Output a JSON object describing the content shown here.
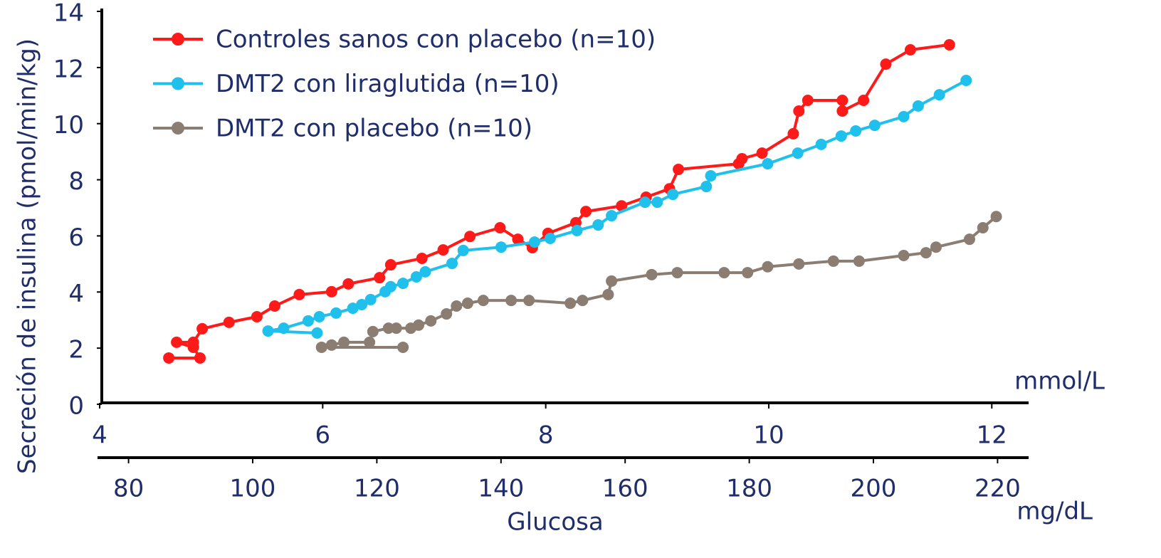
{
  "chart_data": {
    "type": "line",
    "ylabel": "Secreción de insulina (pmol/min/kg)",
    "xlabel": "Glucosa",
    "xunit": "mmol/L",
    "x2unit": "mg/dL",
    "ylim": [
      0,
      14
    ],
    "yticks": [
      0,
      2,
      4,
      6,
      8,
      10,
      12,
      14
    ],
    "xlim": [
      4,
      12.33
    ],
    "xticks": [
      4,
      6,
      8,
      10,
      12
    ],
    "x2lim": [
      75,
      225
    ],
    "x2ticks": [
      80,
      100,
      120,
      140,
      160,
      180,
      200,
      220
    ],
    "legend": "upper left",
    "series": [
      {
        "name": "Controles sanos con placebo (n=10)",
        "color": "#ff1a1a",
        "x": [
          4.62,
          4.9,
          4.84,
          4.69,
          4.84,
          4.92,
          5.16,
          5.41,
          5.57,
          5.79,
          6.08,
          6.23,
          6.51,
          6.61,
          6.89,
          7.08,
          7.32,
          7.59,
          7.75,
          7.88,
          8.02,
          8.27,
          8.36,
          8.68,
          8.9,
          9.11,
          9.19,
          9.73,
          9.76,
          9.94,
          10.22,
          10.27,
          10.35,
          10.66,
          10.66,
          10.85,
          11.05,
          11.27,
          11.62
        ],
        "values": [
          1.65,
          1.65,
          2.03,
          2.21,
          2.21,
          2.69,
          2.92,
          3.12,
          3.5,
          3.91,
          4.01,
          4.29,
          4.51,
          4.97,
          5.2,
          5.5,
          5.98,
          6.29,
          5.88,
          5.58,
          6.09,
          6.47,
          6.87,
          7.07,
          7.38,
          7.68,
          8.37,
          8.57,
          8.75,
          8.95,
          9.64,
          10.45,
          10.83,
          10.83,
          10.45,
          10.83,
          12.12,
          12.63,
          12.81
        ]
      },
      {
        "name": "DMT2 con liraglutida (n=10)",
        "color": "#1fc0ec",
        "x": [
          5.95,
          5.51,
          5.65,
          5.87,
          5.97,
          6.12,
          6.27,
          6.35,
          6.43,
          6.56,
          6.61,
          6.72,
          6.84,
          6.92,
          7.16,
          7.26,
          7.6,
          7.9,
          8.04,
          8.28,
          8.47,
          8.59,
          8.89,
          9.0,
          9.14,
          9.44,
          9.48,
          9.99,
          10.26,
          10.47,
          10.65,
          10.78,
          10.95,
          11.21,
          11.34,
          11.53,
          11.77
        ],
        "values": [
          2.54,
          2.61,
          2.71,
          2.97,
          3.12,
          3.25,
          3.42,
          3.55,
          3.73,
          4.01,
          4.19,
          4.31,
          4.54,
          4.72,
          5.02,
          5.48,
          5.6,
          5.78,
          5.91,
          6.19,
          6.39,
          6.72,
          7.2,
          7.2,
          7.48,
          7.76,
          8.14,
          8.57,
          8.95,
          9.26,
          9.56,
          9.74,
          9.94,
          10.25,
          10.63,
          11.03,
          11.54
        ]
      },
      {
        "name": "DMT2 con placebo (n=10)",
        "color": "#8b7d72",
        "x": [
          6.72,
          5.99,
          6.08,
          6.19,
          6.42,
          6.45,
          6.59,
          6.66,
          6.79,
          6.86,
          6.97,
          7.11,
          7.2,
          7.3,
          7.44,
          7.69,
          7.85,
          8.22,
          8.33,
          8.56,
          8.59,
          8.95,
          9.18,
          9.6,
          9.81,
          9.99,
          10.27,
          10.58,
          10.81,
          11.21,
          11.41,
          11.5,
          11.8,
          11.92,
          12.04
        ],
        "values": [
          2.03,
          2.03,
          2.11,
          2.21,
          2.21,
          2.59,
          2.71,
          2.71,
          2.71,
          2.82,
          2.97,
          3.22,
          3.5,
          3.6,
          3.7,
          3.7,
          3.7,
          3.6,
          3.7,
          3.91,
          4.39,
          4.62,
          4.69,
          4.69,
          4.69,
          4.9,
          5.0,
          5.1,
          5.1,
          5.3,
          5.4,
          5.6,
          5.88,
          6.29,
          6.69
        ]
      }
    ]
  }
}
